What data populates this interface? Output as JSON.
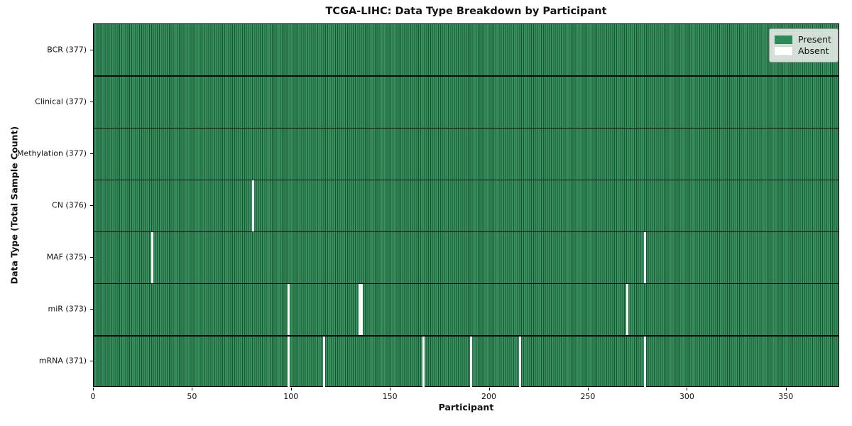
{
  "title": "TCGA-LIHC: Data Type Breakdown by Participant",
  "legend": {
    "present_label": "Present",
    "absent_label": "Absent"
  },
  "chart_data": {
    "type": "heatmap",
    "title": "TCGA-LIHC: Data Type Breakdown by Participant",
    "xlabel": "Participant",
    "ylabel": "Data Type (Total Sample Count)",
    "xlim": [
      0,
      377
    ],
    "x_ticks": [
      0,
      50,
      100,
      150,
      200,
      250,
      300,
      350
    ],
    "legend_labels": [
      "Present",
      "Absent"
    ],
    "legend_position": "upper right",
    "grid": false,
    "total_participants": 377,
    "colors": {
      "present": "#2e8b57",
      "present_edge": "#1b5336",
      "absent": "#ffffff"
    },
    "rows": [
      {
        "label": "BCR (377)",
        "data_type": "BCR",
        "present_count": 377,
        "absent_participants": []
      },
      {
        "label": "Clinical (377)",
        "data_type": "Clinical",
        "present_count": 377,
        "absent_participants": []
      },
      {
        "label": "Methylation (377)",
        "data_type": "Methylation",
        "present_count": 377,
        "absent_participants": []
      },
      {
        "label": "CN (376)",
        "data_type": "CN",
        "present_count": 376,
        "absent_participants": [
          80
        ]
      },
      {
        "label": "MAF (375)",
        "data_type": "MAF",
        "present_count": 375,
        "absent_participants": [
          29,
          278
        ]
      },
      {
        "label": "miR (373)",
        "data_type": "miR",
        "present_count": 373,
        "absent_participants": [
          98,
          134,
          135,
          269
        ]
      },
      {
        "label": "mRNA (371)",
        "data_type": "mRNA",
        "present_count": 371,
        "absent_participants": [
          98,
          116,
          166,
          190,
          215,
          278
        ]
      }
    ]
  }
}
